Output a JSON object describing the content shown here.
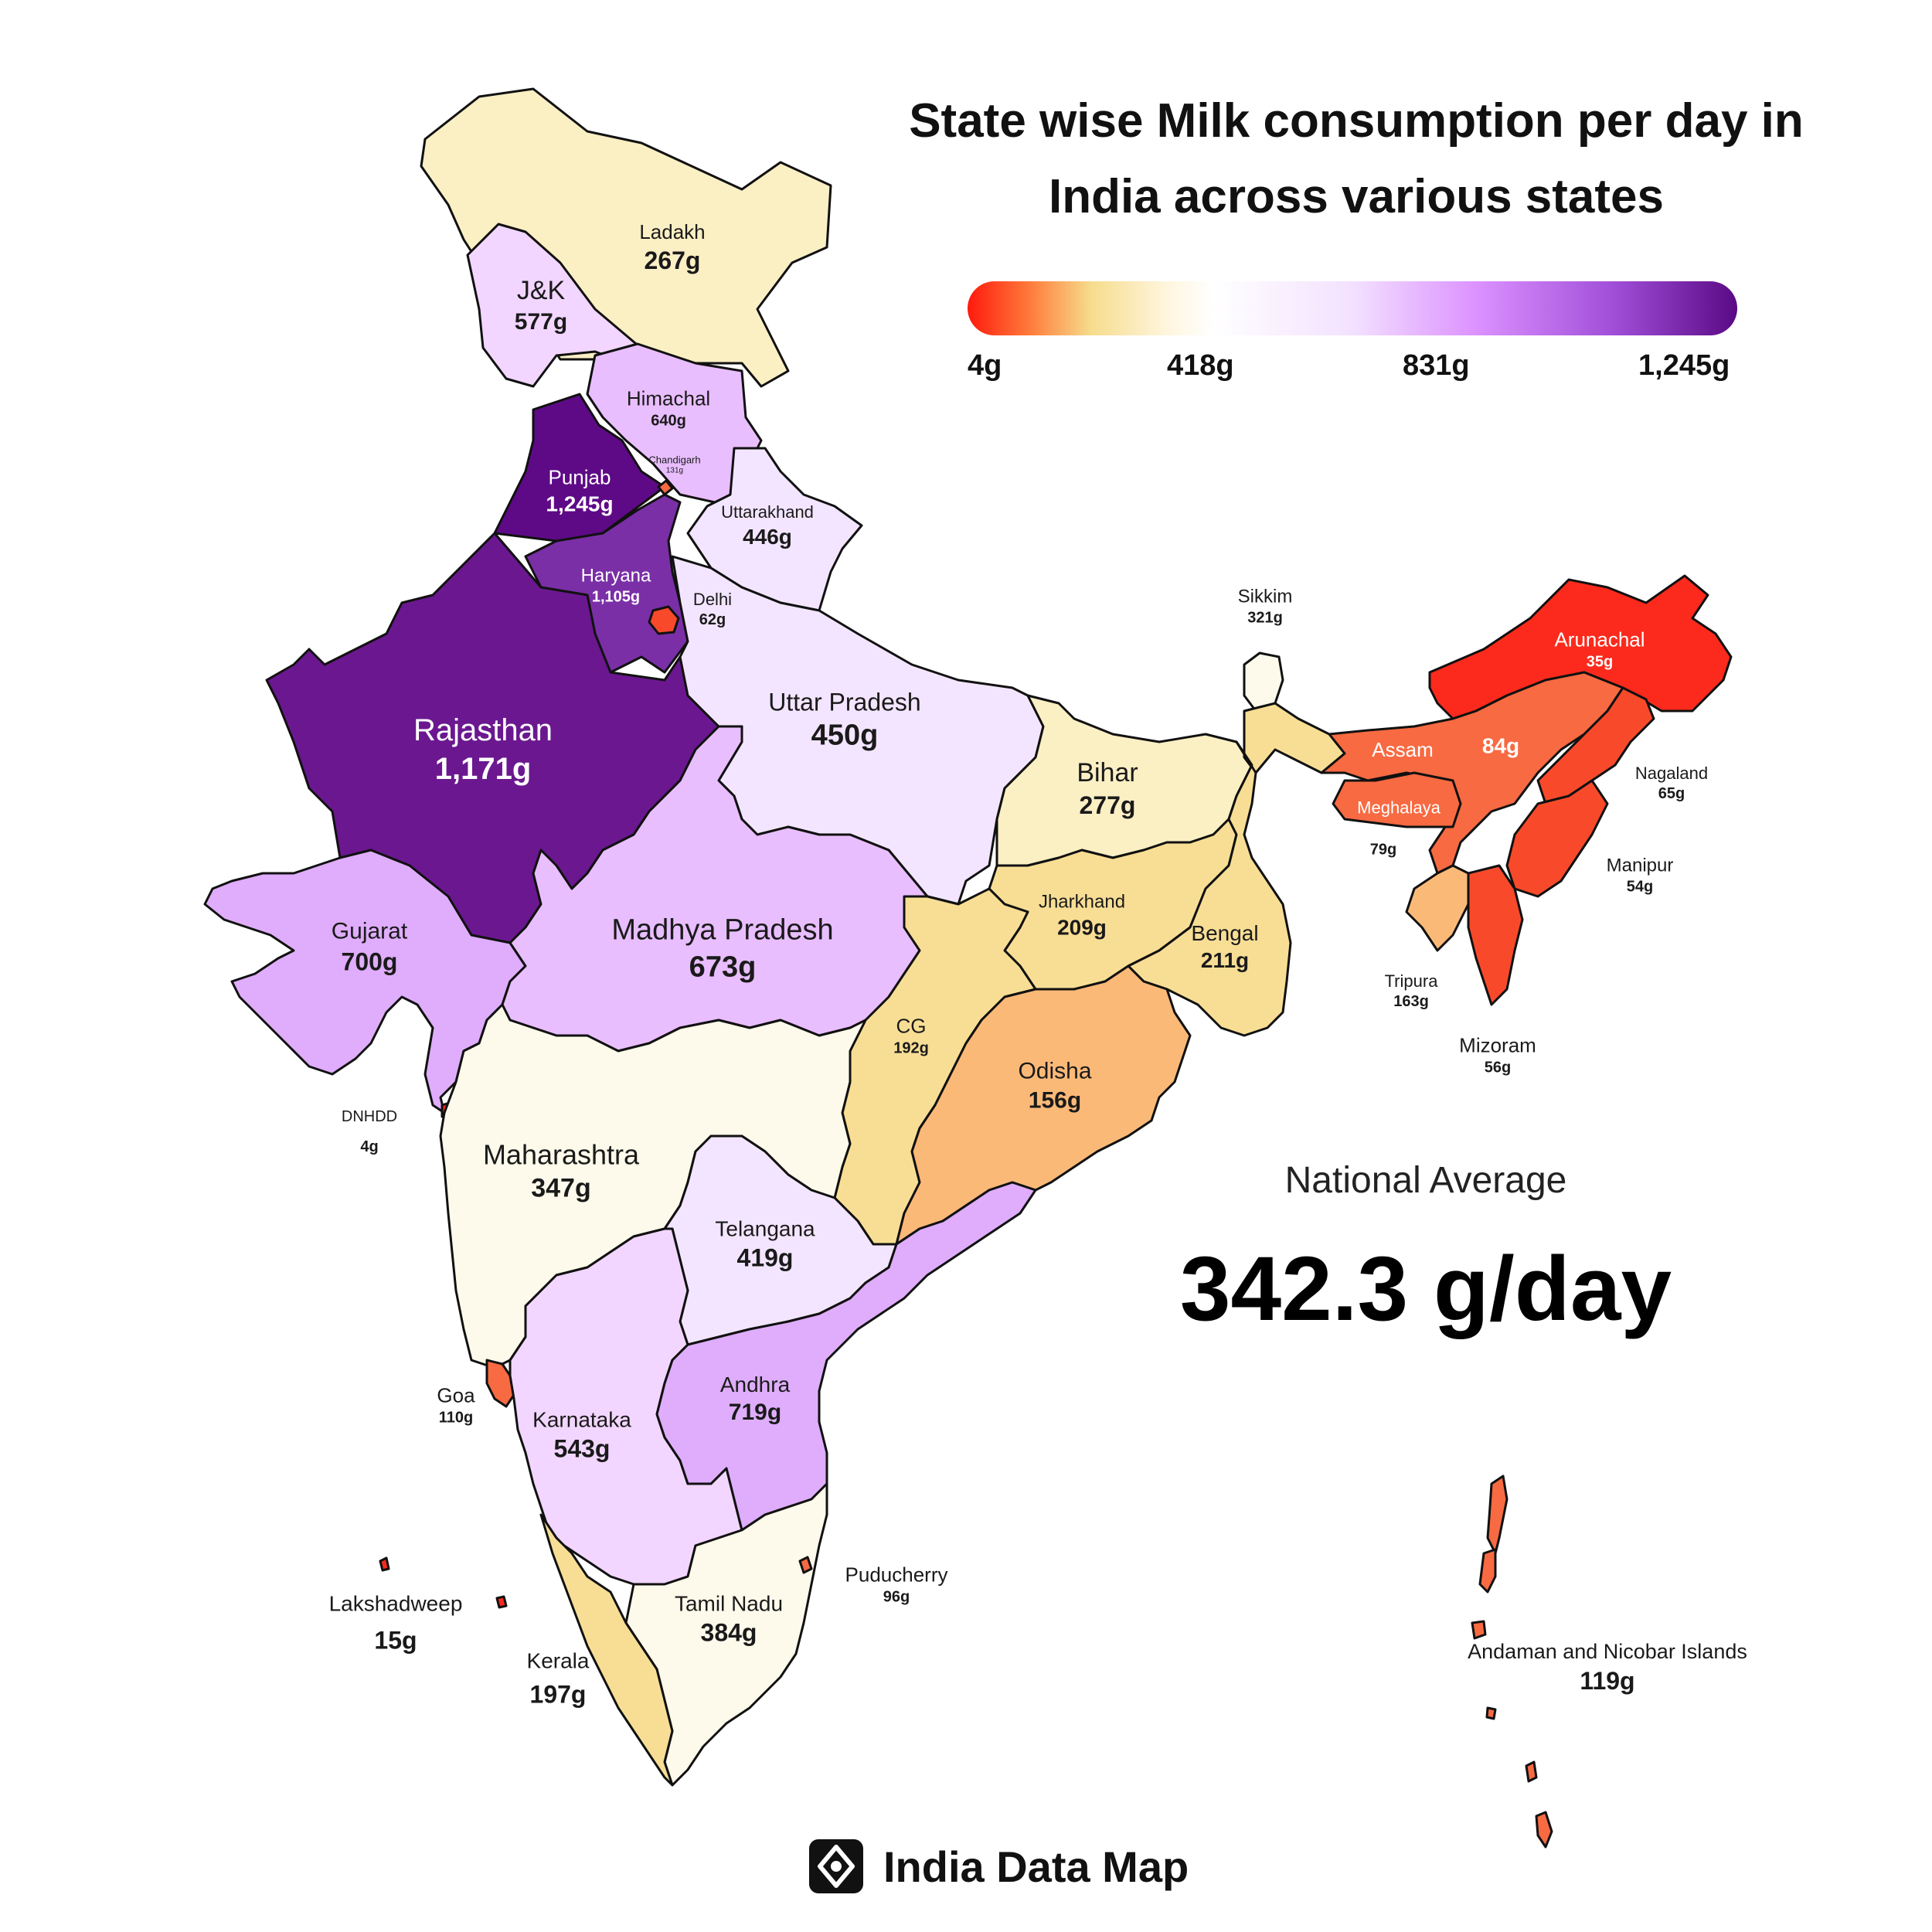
{
  "title": "State wise Milk consumption per day in India across various states",
  "legend": {
    "ticks": [
      "4g",
      "418g",
      "831g",
      "1,245g"
    ],
    "min_color": "#ff1a0e",
    "max_color": "#5a0a85"
  },
  "national_average": {
    "label": "National Average",
    "value": "342.3 g/day"
  },
  "brand": {
    "name": "India Data Map",
    "icon": "map-pin-logo-icon"
  },
  "colors": {
    "very_high": "#5e0a87",
    "high": "#6b1890",
    "high2": "#7a2fa6",
    "mid_high": "#dfadfb",
    "mid": "#e9beff",
    "mid_low": "#f2d6ff",
    "pale": "#f3e5ff",
    "near_white": "#fdf5ff",
    "cream": "#fefaeb",
    "light_yellow": "#fbefc4",
    "yellow": "#f8de95",
    "orange": "#fbb978",
    "orange_red": "#f76a42",
    "red": "#f84a2a",
    "bright_red": "#fb2a1c"
  },
  "states": [
    {
      "key": "ladakh",
      "name": "Ladakh",
      "value": "267g",
      "grams": 267
    },
    {
      "key": "jk",
      "name": "J&K",
      "value": "577g",
      "grams": 577
    },
    {
      "key": "himachal",
      "name": "Himachal",
      "value": "640g",
      "grams": 640
    },
    {
      "key": "punjab",
      "name": "Punjab",
      "value": "1,245g",
      "grams": 1245
    },
    {
      "key": "chandigarh",
      "name": "Chandigarh",
      "value": "131g",
      "grams": 131
    },
    {
      "key": "uttarakhand",
      "name": "Uttarakhand",
      "value": "446g",
      "grams": 446
    },
    {
      "key": "haryana",
      "name": "Haryana",
      "value": "1,105g",
      "grams": 1105
    },
    {
      "key": "delhi",
      "name": "Delhi",
      "value": "62g",
      "grams": 62
    },
    {
      "key": "rajasthan",
      "name": "Rajasthan",
      "value": "1,171g",
      "grams": 1171
    },
    {
      "key": "up",
      "name": "Uttar Pradesh",
      "value": "450g",
      "grams": 450
    },
    {
      "key": "bihar",
      "name": "Bihar",
      "value": "277g",
      "grams": 277
    },
    {
      "key": "sikkim",
      "name": "Sikkim",
      "value": "321g",
      "grams": 321
    },
    {
      "key": "arunachal",
      "name": "Arunachal",
      "value": "35g",
      "grams": 35
    },
    {
      "key": "assam",
      "name": "Assam",
      "value": "84g",
      "grams": 84
    },
    {
      "key": "meghalaya",
      "name": "Meghalaya",
      "value": "79g",
      "grams": 79
    },
    {
      "key": "nagaland",
      "name": "Nagaland",
      "value": "65g",
      "grams": 65
    },
    {
      "key": "manipur",
      "name": "Manipur",
      "value": "54g",
      "grams": 54
    },
    {
      "key": "tripura",
      "name": "Tripura",
      "value": "163g",
      "grams": 163
    },
    {
      "key": "mizoram",
      "name": "Mizoram",
      "value": "56g",
      "grams": 56
    },
    {
      "key": "gujarat",
      "name": "Gujarat",
      "value": "700g",
      "grams": 700
    },
    {
      "key": "mp",
      "name": "Madhya Pradesh",
      "value": "673g",
      "grams": 673
    },
    {
      "key": "jharkhand",
      "name": "Jharkhand",
      "value": "209g",
      "grams": 209
    },
    {
      "key": "bengal",
      "name": "Bengal",
      "value": "211g",
      "grams": 211
    },
    {
      "key": "cg",
      "name": "CG",
      "value": "192g",
      "grams": 192
    },
    {
      "key": "odisha",
      "name": "Odisha",
      "value": "156g",
      "grams": 156
    },
    {
      "key": "dnhdd",
      "name": "DNHDD",
      "value": "4g",
      "grams": 4
    },
    {
      "key": "maharashtra",
      "name": "Maharashtra",
      "value": "347g",
      "grams": 347
    },
    {
      "key": "telangana",
      "name": "Telangana",
      "value": "419g",
      "grams": 419
    },
    {
      "key": "goa",
      "name": "Goa",
      "value": "110g",
      "grams": 110
    },
    {
      "key": "andhra",
      "name": "Andhra",
      "value": "719g",
      "grams": 719
    },
    {
      "key": "karnataka",
      "name": "Karnataka",
      "value": "543g",
      "grams": 543
    },
    {
      "key": "puducherry",
      "name": "Puducherry",
      "value": "96g",
      "grams": 96
    },
    {
      "key": "tamilnadu",
      "name": "Tamil Nadu",
      "value": "384g",
      "grams": 384
    },
    {
      "key": "lakshadweep",
      "name": "Lakshadweep",
      "value": "15g",
      "grams": 15
    },
    {
      "key": "kerala",
      "name": "Kerala",
      "value": "197g",
      "grams": 197
    },
    {
      "key": "andaman",
      "name": "Andaman and Nicobar Islands",
      "value": "119g",
      "grams": 119
    }
  ]
}
